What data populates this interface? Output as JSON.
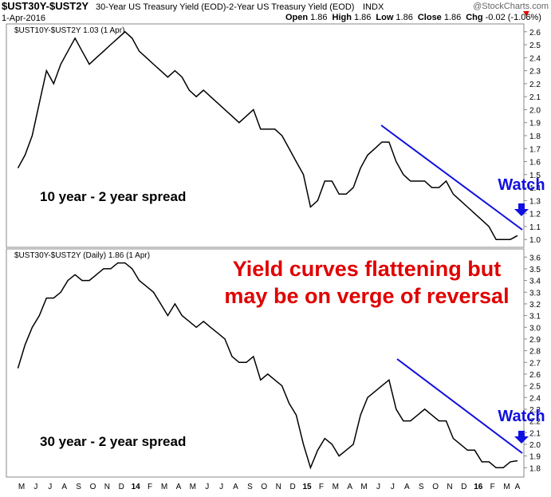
{
  "header": {
    "symbol": "$UST30Y-$UST2Y",
    "description": "30-Year US Treasury Yield (EOD)-2-Year US Treasury Yield (EOD)",
    "exchange": "INDX",
    "watermark": "@StockCharts.com",
    "date": "1-Apr-2016",
    "quote": [
      {
        "label": "Open",
        "value": "1.86"
      },
      {
        "label": "High",
        "value": "1.86"
      },
      {
        "label": "Low",
        "value": "1.86"
      },
      {
        "label": "Close",
        "value": "1.86"
      },
      {
        "label": "Chg",
        "value": "-0.02 (-1.06%)"
      }
    ]
  },
  "annotation": [
    "Yield curves flattening but",
    "may be on verge of reversal"
  ],
  "chart_data": [
    {
      "type": "line",
      "title": "$UST10Y-$UST2Y 1.03 (1 Apr)",
      "label": "10 year - 2 year spread",
      "callout": "Watch",
      "color": "#000000",
      "values": [
        1.55,
        1.65,
        1.8,
        2.05,
        2.3,
        2.2,
        2.35,
        2.45,
        2.55,
        2.45,
        2.35,
        2.4,
        2.45,
        2.5,
        2.55,
        2.6,
        2.55,
        2.45,
        2.4,
        2.35,
        2.3,
        2.25,
        2.3,
        2.25,
        2.15,
        2.1,
        2.15,
        2.1,
        2.05,
        2.0,
        1.95,
        1.9,
        1.95,
        2.0,
        1.85,
        1.85,
        1.85,
        1.8,
        1.7,
        1.6,
        1.5,
        1.25,
        1.3,
        1.45,
        1.45,
        1.35,
        1.35,
        1.4,
        1.55,
        1.65,
        1.7,
        1.75,
        1.75,
        1.6,
        1.5,
        1.45,
        1.45,
        1.45,
        1.4,
        1.4,
        1.45,
        1.35,
        1.3,
        1.25,
        1.2,
        1.15,
        1.1,
        1.0,
        1.0,
        1.0,
        1.03
      ],
      "ylim": [
        0.94,
        2.66
      ],
      "yticks": [
        {
          "value": 1.0,
          "label": "1.0"
        },
        1.1,
        1.2,
        1.3,
        1.4,
        1.5,
        1.6,
        1.7,
        1.8,
        1.9,
        {
          "value": 2.0,
          "label": "2.0"
        },
        2.1,
        2.2,
        2.3,
        2.4,
        2.5,
        2.6
      ]
    },
    {
      "type": "line",
      "title": "$UST30Y-$UST2Y (Daily) 1.86 (1 Apr)",
      "label": "30 year - 2 year spread",
      "callout": "Watch",
      "color": "#000000",
      "categories": [
        "M",
        null,
        "J",
        null,
        "J",
        null,
        "A",
        null,
        "S",
        null,
        "O",
        null,
        "N",
        null,
        "D",
        null,
        "14",
        null,
        "F",
        null,
        "M",
        null,
        "A",
        null,
        "M",
        null,
        "J",
        null,
        "J",
        null,
        "A",
        null,
        "S",
        null,
        "O",
        null,
        "N",
        null,
        "D",
        null,
        "15",
        null,
        "F",
        null,
        "M",
        null,
        "A",
        null,
        "M",
        null,
        "J",
        null,
        "J",
        null,
        "A",
        null,
        "S",
        null,
        "O",
        null,
        "N",
        null,
        "D",
        null,
        "16",
        null,
        "F",
        null,
        "M",
        null,
        "A"
      ],
      "values": [
        2.65,
        2.85,
        3.0,
        3.1,
        3.25,
        3.25,
        3.3,
        3.4,
        3.45,
        3.4,
        3.4,
        3.45,
        3.5,
        3.5,
        3.55,
        3.55,
        3.5,
        3.4,
        3.35,
        3.3,
        3.2,
        3.1,
        3.2,
        3.1,
        3.05,
        3.0,
        3.05,
        3.0,
        2.95,
        2.9,
        2.75,
        2.7,
        2.7,
        2.75,
        2.55,
        2.6,
        2.55,
        2.5,
        2.35,
        2.25,
        2.0,
        1.8,
        1.95,
        2.05,
        2.0,
        1.9,
        1.95,
        2.0,
        2.25,
        2.4,
        2.45,
        2.5,
        2.55,
        2.3,
        2.2,
        2.2,
        2.25,
        2.3,
        2.25,
        2.2,
        2.2,
        2.05,
        2.0,
        1.95,
        1.95,
        1.85,
        1.85,
        1.8,
        1.8,
        1.85,
        1.86
      ],
      "ylim": [
        1.72,
        3.67
      ],
      "yticks": [
        1.8,
        1.9,
        {
          "value": 2.0,
          "label": "2.0"
        },
        2.1,
        2.2,
        2.3,
        2.4,
        2.5,
        2.6,
        2.7,
        2.8,
        2.9,
        {
          "value": 3.0,
          "label": "3.0"
        },
        3.1,
        3.2,
        3.3,
        3.4,
        3.5,
        3.6
      ]
    }
  ]
}
